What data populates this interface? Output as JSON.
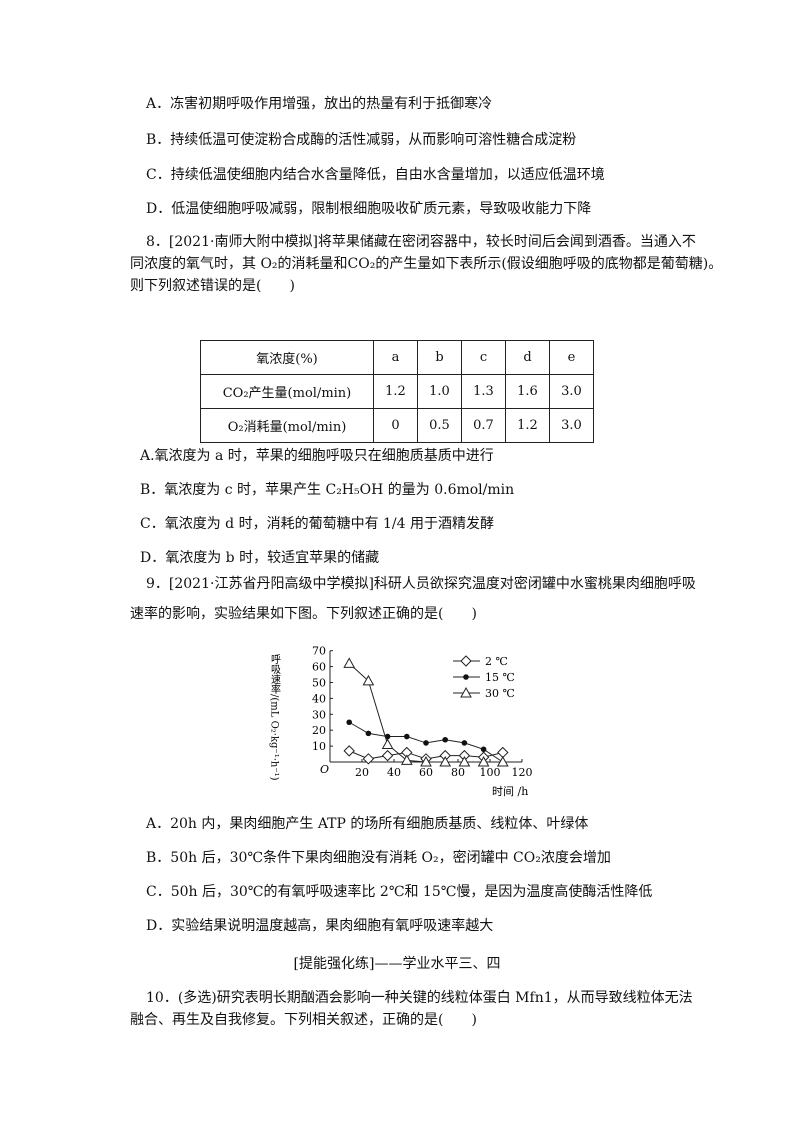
{
  "q7_options": [
    "A．冻害初期呼吸作用增强，放出的热量有利于抵御寒冷",
    "B．持续低温可使淀粉合成酶的活性减弱，从而影响可溶性糖合成淀粉",
    "C．持续低温使细胞内结合水含量降低，自由水含量增加，以适应低温环境",
    "D．低温使细胞呼吸减弱，限制根细胞吸收矿质元素，导致吸收能力下降"
  ],
  "q8": {
    "lines": [
      "8．[2021·南师大附中模拟]将苹果储藏在密闭容器中，较长时间后会闻到酒香。当通入不",
      "同浓度的氧气时，其 O₂的消耗量和CO₂的产生量如下表所示(假设细胞呼吸的底物都是葡萄糖)。",
      "则下列叙述错误的是(　　)"
    ],
    "table": {
      "header": [
        "氧浓度(%)",
        "a",
        "b",
        "c",
        "d",
        "e"
      ],
      "rows": [
        [
          "CO₂产生量(mol/min)",
          "1.2",
          "1.0",
          "1.3",
          "1.6",
          "3.0"
        ],
        [
          "O₂消耗量(mol/min)",
          "0",
          "0.5",
          "0.7",
          "1.2",
          "3.0"
        ]
      ]
    },
    "options": [
      "A.氧浓度为 a 时，苹果的细胞呼吸只在细胞质基质中进行",
      "B．氧浓度为 c 时，苹果产生 C₂H₅OH 的量为 0.6mol/min",
      "C．氧浓度为 d 时，消耗的葡萄糖中有 1/4 用于酒精发酵",
      "D．氧浓度为 b 时，较适宜苹果的储藏"
    ]
  },
  "q9": {
    "lines": [
      "9．[2021·江苏省丹阳高级中学模拟]科研人员欲探究温度对密闭罐中水蜜桃果肉细胞呼吸",
      "速率的影响，实验结果如下图。下列叙述正确的是(　　)"
    ],
    "options": [
      "A．20h 内，果肉细胞产生 ATP 的场所有细胞质基质、线粒体、叶绿体",
      "B．50h 后，30℃条件下果肉细胞没有消耗 O₂，密闭罐中 CO₂浓度会增加",
      "C．50h 后，30℃的有氧呼吸速率比 2℃和 15℃慢，是因为温度高使酶活性降低",
      "D．实验结果说明温度越高，果肉细胞有氧呼吸速率越大"
    ]
  },
  "chart_data": {
    "type": "line",
    "xlabel": "时间 /h",
    "ylabel": "呼吸速率/(mL O₂·kg⁻¹·h⁻¹)",
    "origin_label": "O",
    "xlim": [
      0,
      120
    ],
    "ylim": [
      0,
      70
    ],
    "xticks": [
      "20",
      "40",
      "60",
      "80",
      "100",
      "120"
    ],
    "yticks": [
      "10",
      "20",
      "30",
      "40",
      "50",
      "60",
      "70"
    ],
    "legend_position": "top-right",
    "x": [
      12,
      24,
      36,
      48,
      60,
      72,
      84,
      96,
      108
    ],
    "series": [
      {
        "name": "2 ℃",
        "marker": "diamond",
        "values": [
          7,
          2,
          4,
          6,
          2,
          4,
          4,
          3,
          6
        ]
      },
      {
        "name": "15 ℃",
        "marker": "dot",
        "values": [
          25,
          18,
          16,
          16,
          12,
          14,
          12,
          8,
          0
        ]
      },
      {
        "name": "30 ℃",
        "marker": "triangle",
        "values": [
          62,
          51,
          11,
          1,
          0,
          0,
          0,
          0,
          0
        ]
      }
    ]
  },
  "section_heading": "[提能强化练]——学业水平三、四",
  "q10": {
    "lines": [
      "10．(多选)研究表明长期酗酒会影响一种关键的线粒体蛋白 Mfn1，从而导致线粒体无法",
      "融合、再生及自我修复。下列相关叙述，正确的是(　　)"
    ]
  }
}
